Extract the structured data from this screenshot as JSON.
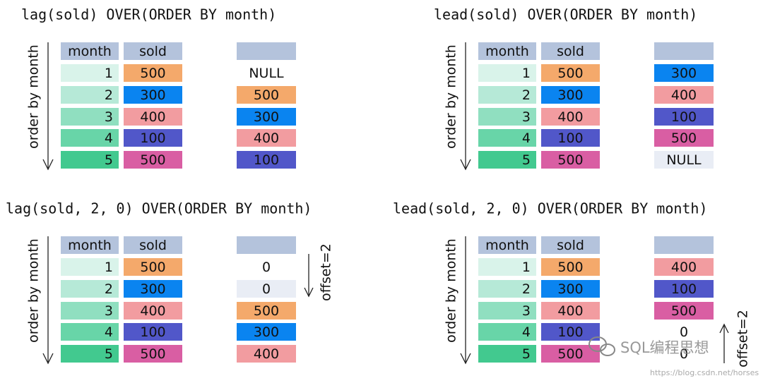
{
  "header_color": "#b4c3dc",
  "month_colors": [
    "#d9f3ea",
    "#b6e9d7",
    "#90dfc0",
    "#68d5a8",
    "#42c98f"
  ],
  "sold_colors": [
    "#f4a96b",
    "#0a84f0",
    "#f29ca0",
    "#5157c9",
    "#d95ea3"
  ],
  "panels": [
    {
      "title": "lag(sold) OVER(ORDER BY month)",
      "axis_label": "order by month",
      "headers": [
        "month",
        "sold"
      ],
      "months": [
        "1",
        "2",
        "3",
        "4",
        "5"
      ],
      "sold": [
        "500",
        "300",
        "400",
        "100",
        "500"
      ],
      "result": [
        "NULL",
        "500",
        "300",
        "400",
        "100"
      ],
      "result_colors": [
        "#ffffff",
        "#f4a96b",
        "#0a84f0",
        "#f29ca0",
        "#5157c9"
      ]
    },
    {
      "title": "lead(sold) OVER(ORDER BY month)",
      "axis_label": "order by month",
      "headers": [
        "month",
        "sold"
      ],
      "months": [
        "1",
        "2",
        "3",
        "4",
        "5"
      ],
      "sold": [
        "500",
        "300",
        "400",
        "100",
        "500"
      ],
      "result": [
        "300",
        "400",
        "100",
        "500",
        "NULL"
      ],
      "result_colors": [
        "#0a84f0",
        "#f29ca0",
        "#5157c9",
        "#d95ea3",
        "#e9edf5"
      ]
    },
    {
      "title": "lag(sold, 2, 0) OVER(ORDER BY month)",
      "axis_label": "order by month",
      "headers": [
        "month",
        "sold"
      ],
      "months": [
        "1",
        "2",
        "3",
        "4",
        "5"
      ],
      "sold": [
        "500",
        "300",
        "400",
        "100",
        "500"
      ],
      "result": [
        "0",
        "0",
        "500",
        "300",
        "400"
      ],
      "result_colors": [
        "#ffffff",
        "#e9edf5",
        "#f4a96b",
        "#0a84f0",
        "#f29ca0"
      ],
      "offset_label": "offset=2"
    },
    {
      "title": "lead(sold, 2, 0) OVER(ORDER BY month)",
      "axis_label": "order by month",
      "headers": [
        "month",
        "sold"
      ],
      "months": [
        "1",
        "2",
        "3",
        "4",
        "5"
      ],
      "sold": [
        "500",
        "300",
        "400",
        "100",
        "500"
      ],
      "result": [
        "400",
        "100",
        "500",
        "0",
        "0"
      ],
      "result_colors": [
        "#f29ca0",
        "#5157c9",
        "#d95ea3",
        "#ffffff",
        "#ffffff"
      ],
      "offset_label": "offset=2"
    }
  ],
  "watermark": "SQL编程思想",
  "url": "https://blog.csdn.net/horses"
}
